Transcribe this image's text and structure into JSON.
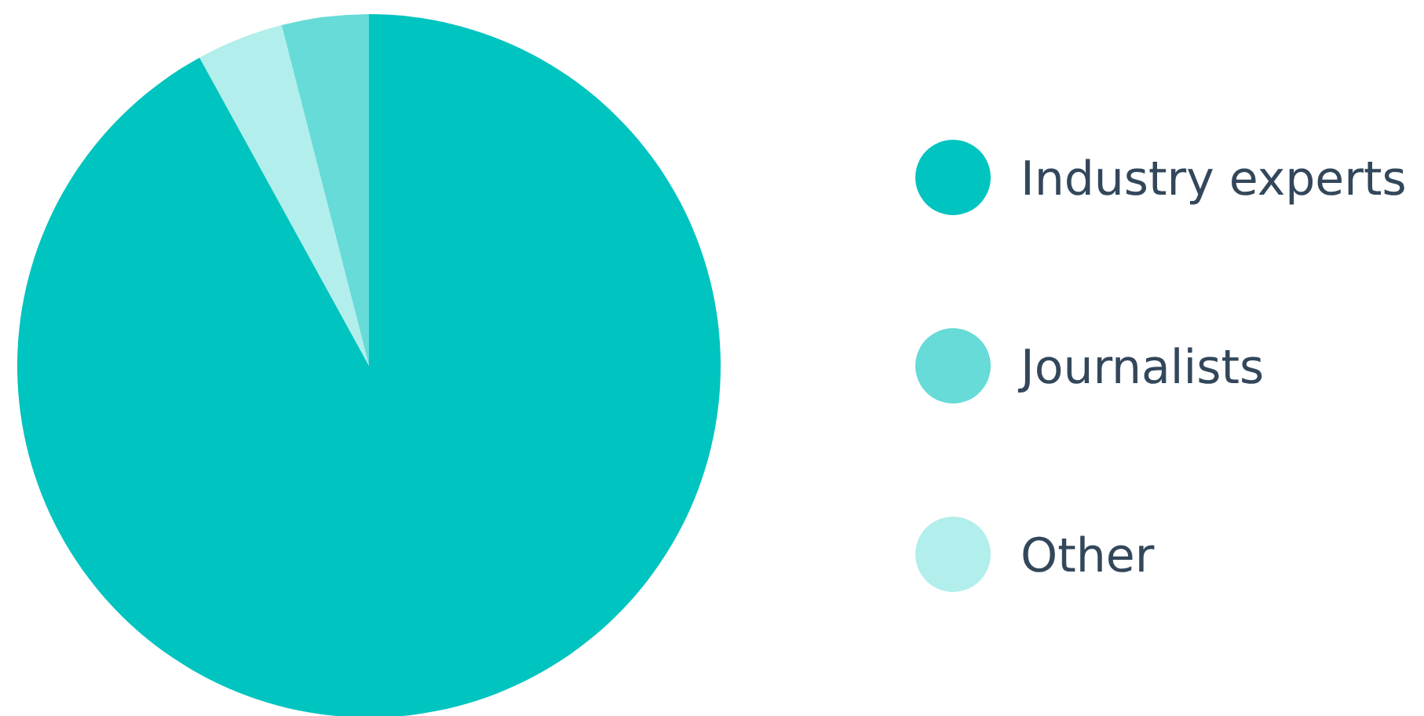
{
  "chart_data": {
    "type": "pie",
    "categories": [
      "Industry experts",
      "Journalists",
      "Other"
    ],
    "values": [
      92,
      4,
      4
    ],
    "colors": [
      "#00c4bf",
      "#66dbd7",
      "#b2eeeb"
    ],
    "legend": "right"
  }
}
